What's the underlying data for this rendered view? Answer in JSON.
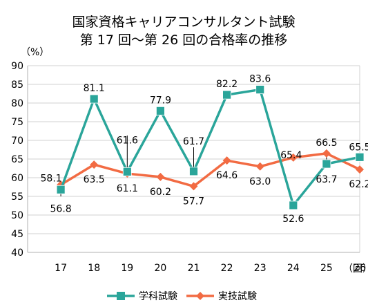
{
  "chart_data": {
    "type": "line",
    "title_line1": "国家資格キャリアコンサルタント試験",
    "title_line2": "第 17 回～第 26 回の合格率の推移",
    "y_unit": "（%）",
    "x_unit": "（回）",
    "ylim": [
      40,
      90
    ],
    "ytick_step": 5,
    "grid": true,
    "legend_position": "bottom",
    "categories": [
      "17",
      "18",
      "19",
      "20",
      "21",
      "22",
      "23",
      "24",
      "25",
      "26"
    ],
    "series": [
      {
        "name": "学科試験",
        "color": "#2aa59a",
        "marker": "square",
        "values": [
          56.8,
          81.1,
          61.6,
          77.9,
          61.7,
          82.2,
          83.6,
          52.6,
          63.7,
          65.5
        ],
        "labels": [
          "56.8",
          "81.1",
          "61.6",
          "77.9",
          "61.7",
          "82.2",
          "83.6",
          "52.6",
          "63.7",
          "65.5"
        ]
      },
      {
        "name": "実技試験",
        "color": "#f26b43",
        "marker": "diamond",
        "values": [
          58.1,
          63.5,
          61.1,
          60.2,
          57.7,
          64.6,
          63.0,
          65.4,
          66.5,
          62.2
        ],
        "labels": [
          "58.1",
          "63.5",
          "61.1",
          "60.2",
          "57.7",
          "64.6",
          "63.0",
          "65.4",
          "66.5",
          "62.2"
        ]
      }
    ]
  }
}
